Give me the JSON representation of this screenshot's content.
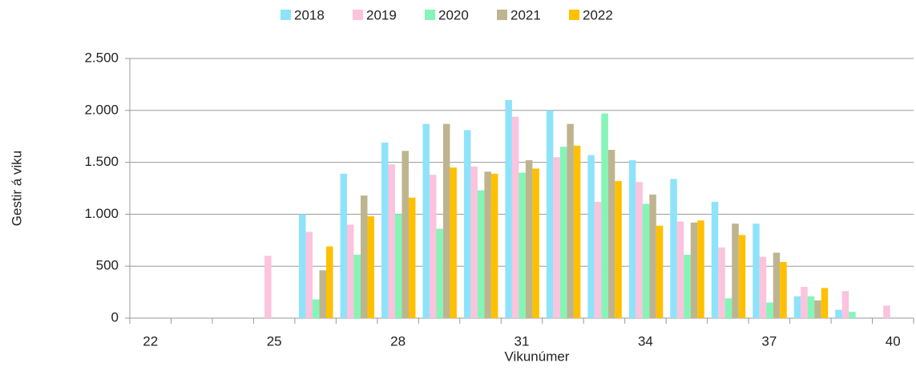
{
  "chart_data": {
    "type": "bar",
    "x_label": "Vikunúmer",
    "y_label": "Gestir á viku",
    "categories": [
      "22",
      null,
      null,
      "25",
      null,
      null,
      "28",
      null,
      null,
      "31",
      null,
      null,
      "34",
      null,
      null,
      "37",
      null,
      null,
      "40"
    ],
    "series": [
      {
        "name": "2018",
        "color": "#8ee3fa",
        "values": [
          null,
          null,
          null,
          null,
          1000,
          1390,
          1690,
          1870,
          1810,
          2100,
          2000,
          1570,
          1520,
          1340,
          1120,
          910,
          210,
          80,
          null
        ]
      },
      {
        "name": "2019",
        "color": "#fbc3dd",
        "values": [
          null,
          null,
          null,
          600,
          830,
          900,
          1480,
          1380,
          1460,
          1940,
          1550,
          1120,
          1310,
          930,
          680,
          590,
          300,
          260,
          120
        ]
      },
      {
        "name": "2020",
        "color": "#84f5b6",
        "values": [
          null,
          null,
          null,
          null,
          180,
          610,
          1000,
          860,
          1230,
          1400,
          1650,
          1970,
          1100,
          610,
          190,
          150,
          210,
          60,
          null
        ]
      },
      {
        "name": "2021",
        "color": "#beb48f",
        "values": [
          null,
          null,
          null,
          null,
          460,
          1180,
          1610,
          1870,
          1410,
          1520,
          1870,
          1620,
          1190,
          920,
          910,
          630,
          170,
          null,
          null
        ]
      },
      {
        "name": "2022",
        "color": "#ffc000",
        "values": [
          null,
          null,
          null,
          null,
          690,
          980,
          1160,
          1450,
          1390,
          1440,
          1660,
          1320,
          890,
          940,
          800,
          540,
          290,
          null,
          null
        ]
      }
    ],
    "ylim": [
      0,
      2500
    ],
    "yticks": [
      0,
      500,
      {
        "value": 1000,
        "label": "1.000"
      },
      {
        "value": 1500,
        "label": "1.500"
      },
      {
        "value": 2000,
        "label": "2.000"
      },
      {
        "value": 2500,
        "label": "2.500"
      }
    ],
    "grid": true,
    "legend": "top"
  }
}
